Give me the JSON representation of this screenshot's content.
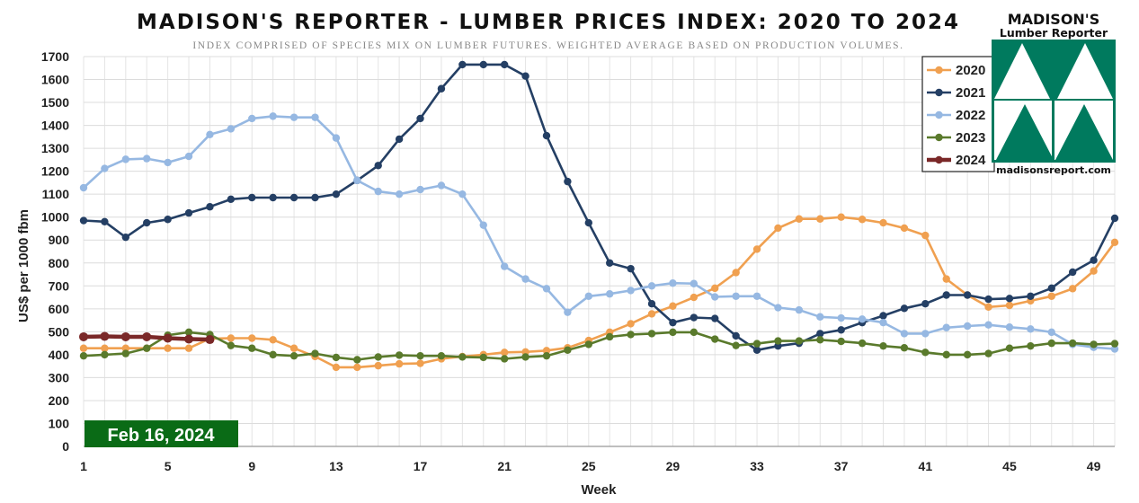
{
  "header": {
    "title": "MADISON'S REPORTER - LUMBER PRICES INDEX: 2020 TO 2024",
    "subtitle": "INDEX COMPRISED OF SPECIES MIX ON LUMBER FUTURES. WEIGHTED AVERAGE BASED ON PRODUCTION VOLUMES."
  },
  "logo": {
    "line1": "MADISON'S",
    "line2": "Lumber Reporter",
    "url": "madisonsreport.com",
    "color": "#007a5e"
  },
  "date_badge": {
    "label": "Feb 16, 2024",
    "color": "#0a6b16"
  },
  "chart_data": {
    "type": "line",
    "xlabel": "Week",
    "ylabel": "US$ per 1000 fbm",
    "xlim": [
      1,
      50
    ],
    "ylim": [
      0,
      1700
    ],
    "x_ticks": [
      1,
      5,
      9,
      13,
      17,
      21,
      25,
      29,
      33,
      37,
      41,
      45,
      49
    ],
    "y_ticks": [
      0,
      100,
      200,
      300,
      400,
      500,
      600,
      700,
      800,
      900,
      1000,
      1100,
      1200,
      1300,
      1400,
      1500,
      1600,
      1700
    ],
    "grid": "horizontal and vertical",
    "legend_position": "top-right",
    "series": [
      {
        "name": "2020",
        "color": "#f0a050",
        "x": [
          1,
          2,
          3,
          4,
          5,
          6,
          7,
          8,
          9,
          10,
          11,
          12,
          13,
          14,
          15,
          16,
          17,
          18,
          19,
          20,
          21,
          22,
          23,
          24,
          25,
          26,
          27,
          28,
          29,
          30,
          31,
          32,
          33,
          34,
          35,
          36,
          37,
          38,
          39,
          40,
          41,
          42,
          43,
          44,
          45,
          46,
          47,
          48,
          49,
          50
        ],
        "values": [
          428,
          428,
          428,
          428,
          428,
          428,
          470,
          472,
          472,
          465,
          428,
          392,
          345,
          345,
          352,
          360,
          362,
          382,
          392,
          400,
          410,
          412,
          418,
          430,
          462,
          498,
          535,
          578,
          612,
          650,
          690,
          758,
          860,
          952,
          992,
          992,
          1000,
          990,
          975,
          952,
          920,
          730,
          660,
          608,
          615,
          635,
          655,
          688,
          765,
          890
        ]
      },
      {
        "name": "2021",
        "color": "#243f64",
        "x": [
          1,
          2,
          3,
          4,
          5,
          6,
          7,
          8,
          9,
          10,
          11,
          12,
          13,
          14,
          15,
          16,
          17,
          18,
          19,
          20,
          21,
          22,
          23,
          24,
          25,
          26,
          27,
          28,
          29,
          30,
          31,
          32,
          33,
          34,
          35,
          36,
          37,
          38,
          39,
          40,
          41,
          42,
          43,
          44,
          45,
          46,
          47,
          48,
          49,
          50
        ],
        "values": [
          985,
          980,
          912,
          975,
          990,
          1018,
          1045,
          1078,
          1085,
          1085,
          1085,
          1085,
          1100,
          1160,
          1225,
          1340,
          1430,
          1560,
          1665,
          1665,
          1665,
          1615,
          1355,
          1155,
          975,
          800,
          775,
          622,
          540,
          562,
          558,
          482,
          420,
          438,
          450,
          492,
          508,
          540,
          570,
          602,
          622,
          660,
          660,
          642,
          645,
          655,
          690,
          760,
          812,
          995
        ]
      },
      {
        "name": "2022",
        "color": "#96b8e2",
        "x": [
          1,
          2,
          3,
          4,
          5,
          6,
          7,
          8,
          9,
          10,
          11,
          12,
          13,
          14,
          15,
          16,
          17,
          18,
          19,
          20,
          21,
          22,
          23,
          24,
          25,
          26,
          27,
          28,
          29,
          30,
          31,
          32,
          33,
          34,
          35,
          36,
          37,
          38,
          39,
          40,
          41,
          42,
          43,
          44,
          45,
          46,
          47,
          48,
          49,
          50
        ],
        "values": [
          1128,
          1212,
          1252,
          1255,
          1238,
          1265,
          1360,
          1385,
          1430,
          1440,
          1435,
          1435,
          1345,
          1160,
          1112,
          1100,
          1120,
          1138,
          1100,
          965,
          785,
          730,
          688,
          585,
          655,
          665,
          680,
          700,
          712,
          710,
          652,
          655,
          655,
          605,
          595,
          565,
          560,
          555,
          540,
          492,
          492,
          518,
          525,
          530,
          520,
          512,
          498,
          445,
          432,
          425
        ]
      },
      {
        "name": "2023",
        "color": "#5a7a2c",
        "x": [
          1,
          2,
          3,
          4,
          5,
          6,
          7,
          8,
          9,
          10,
          11,
          12,
          13,
          14,
          15,
          16,
          17,
          18,
          19,
          20,
          21,
          22,
          23,
          24,
          25,
          26,
          27,
          28,
          29,
          30,
          31,
          32,
          33,
          34,
          35,
          36,
          37,
          38,
          39,
          40,
          41,
          42,
          43,
          44,
          45,
          46,
          47,
          48,
          49,
          50
        ],
        "values": [
          395,
          400,
          405,
          428,
          485,
          498,
          488,
          440,
          428,
          400,
          395,
          405,
          388,
          378,
          390,
          398,
          395,
          395,
          390,
          388,
          382,
          390,
          395,
          420,
          445,
          478,
          488,
          492,
          498,
          498,
          468,
          440,
          448,
          460,
          460,
          465,
          458,
          450,
          438,
          430,
          410,
          400,
          400,
          405,
          428,
          438,
          450,
          450,
          445,
          448
        ]
      },
      {
        "name": "2024",
        "color": "#7a2828",
        "x": [
          1,
          2,
          3,
          4,
          5,
          6,
          7
        ],
        "values": [
          478,
          480,
          478,
          478,
          472,
          468,
          466
        ]
      }
    ]
  }
}
